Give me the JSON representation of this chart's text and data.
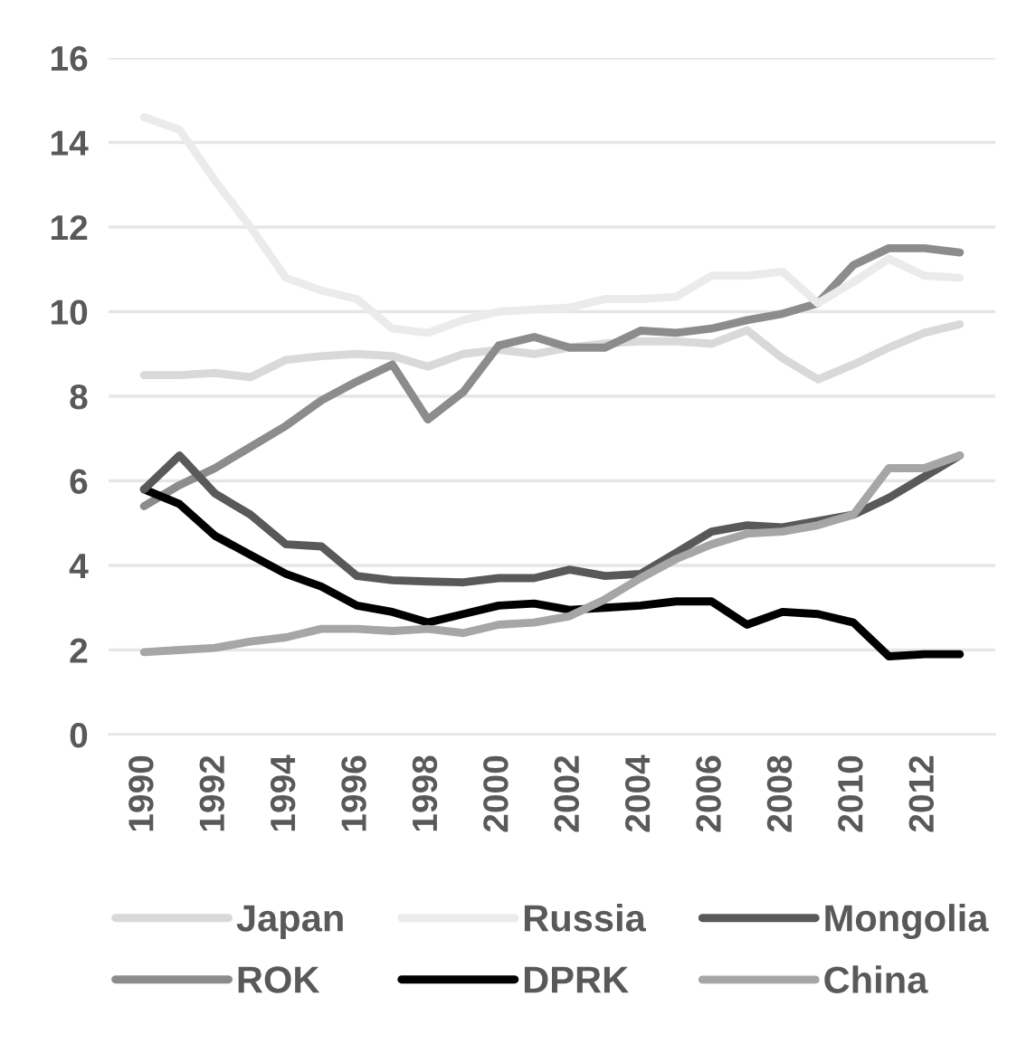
{
  "chart_data": {
    "type": "line",
    "x": [
      1990,
      1991,
      1992,
      1993,
      1994,
      1995,
      1996,
      1997,
      1998,
      1999,
      2000,
      2001,
      2002,
      2003,
      2004,
      2005,
      2006,
      2007,
      2008,
      2009,
      2010,
      2011,
      2012,
      2013
    ],
    "series": [
      {
        "name": "Japan",
        "color": "#d9d9d9",
        "values": [
          8.5,
          8.5,
          8.55,
          8.45,
          8.86,
          8.95,
          9.0,
          8.95,
          8.7,
          9.0,
          9.1,
          9.0,
          9.15,
          9.25,
          9.3,
          9.3,
          9.24,
          9.56,
          8.9,
          8.4,
          8.75,
          9.15,
          9.5,
          9.7
        ]
      },
      {
        "name": "ROK",
        "color": "#8c8c8c",
        "values": [
          5.4,
          5.9,
          6.3,
          6.8,
          7.3,
          7.9,
          8.35,
          8.75,
          7.45,
          8.1,
          9.2,
          9.4,
          9.15,
          9.15,
          9.55,
          9.5,
          9.6,
          9.8,
          9.95,
          10.2,
          11.1,
          11.5,
          11.5,
          11.4
        ]
      },
      {
        "name": "Russia",
        "color": "#ebebeb",
        "values": [
          14.6,
          14.3,
          13.1,
          12.0,
          10.8,
          10.5,
          10.3,
          9.6,
          9.5,
          9.8,
          10.0,
          10.05,
          10.1,
          10.3,
          10.3,
          10.35,
          10.85,
          10.85,
          10.95,
          10.2,
          10.7,
          11.25,
          10.85,
          10.8
        ]
      },
      {
        "name": "DPRK",
        "color": "#000000",
        "values": [
          5.8,
          5.45,
          4.7,
          4.25,
          3.8,
          3.5,
          3.05,
          2.9,
          2.65,
          2.85,
          3.05,
          3.1,
          2.95,
          3.0,
          3.05,
          3.15,
          3.15,
          2.6,
          2.9,
          2.85,
          2.65,
          1.85,
          1.9,
          1.9
        ]
      },
      {
        "name": "Mongolia",
        "color": "#595959",
        "values": [
          5.8,
          6.6,
          5.7,
          5.2,
          4.5,
          4.45,
          3.75,
          3.65,
          3.62,
          3.6,
          3.7,
          3.7,
          3.9,
          3.75,
          3.8,
          4.3,
          4.8,
          4.95,
          4.9,
          5.05,
          5.2,
          5.6,
          6.1,
          6.6
        ]
      },
      {
        "name": "China",
        "color": "#a6a6a6",
        "values": [
          1.95,
          2.0,
          2.05,
          2.2,
          2.3,
          2.5,
          2.5,
          2.45,
          2.5,
          2.4,
          2.6,
          2.65,
          2.8,
          3.2,
          3.7,
          4.15,
          4.5,
          4.75,
          4.8,
          4.95,
          5.2,
          6.3,
          6.3,
          6.6
        ]
      }
    ],
    "xlim": [
      1989,
      2014
    ],
    "xticks": [
      1990,
      1992,
      1994,
      1996,
      1998,
      2000,
      2002,
      2004,
      2006,
      2008,
      2010,
      2012
    ],
    "ylim": [
      0,
      16
    ],
    "yticks": [
      0,
      2,
      4,
      6,
      8,
      10,
      12,
      14,
      16
    ],
    "grid": "y",
    "legend": "bottom",
    "line_style": "solid",
    "marker": "none"
  }
}
